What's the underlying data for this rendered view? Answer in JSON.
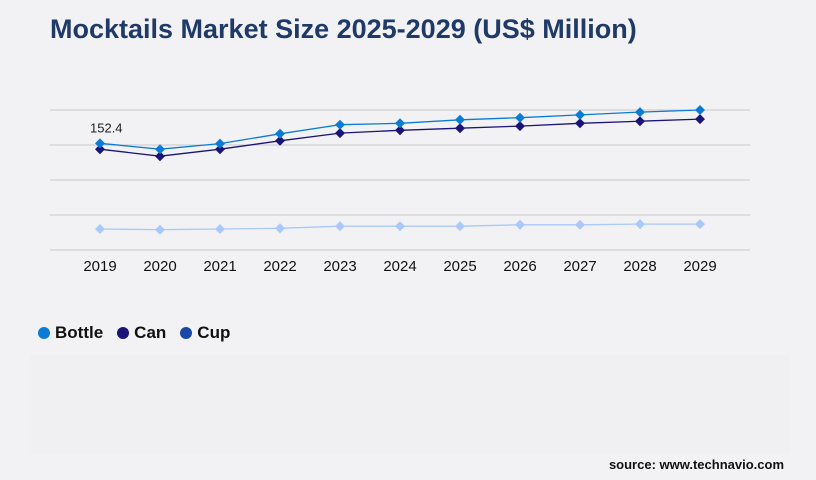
{
  "title": "Mocktails Market Size 2025-2029 (US$ Million)",
  "source": "source: www.technavio.com",
  "chart_data": {
    "type": "line",
    "title": "Mocktails Market Size 2025-2029 (US$ Million)",
    "categories": [
      "2019",
      "2020",
      "2021",
      "2022",
      "2023",
      "2024",
      "2025",
      "2026",
      "2027",
      "2028",
      "2029"
    ],
    "ylim": [
      0,
      200
    ],
    "grid": true,
    "legend_position": "bottom-left",
    "series": [
      {
        "name": "Bottle",
        "color": "#0a7bd6",
        "legend_color": "#0a7bd6",
        "values": [
          152.4,
          144,
          152,
          166,
          179,
          181,
          186,
          189,
          193,
          197,
          200
        ]
      },
      {
        "name": "Can",
        "color": "#1a1478",
        "legend_color": "#1a1478",
        "values": [
          144,
          134,
          144,
          156,
          167,
          171,
          174,
          177,
          181,
          184,
          187
        ]
      },
      {
        "name": "Cup",
        "color": "#a9c8fb",
        "legend_color": "#1a47a8",
        "values": [
          30,
          29,
          30,
          31,
          34,
          34,
          34,
          36,
          36,
          37,
          37
        ]
      }
    ],
    "data_labels": [
      {
        "series": "Bottle",
        "category": "2019",
        "text": "152.4"
      }
    ]
  }
}
